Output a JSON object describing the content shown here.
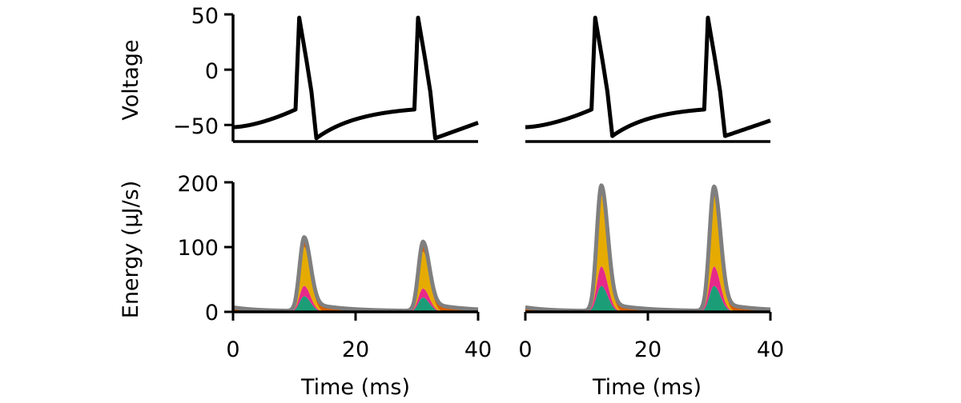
{
  "chart_data": {
    "type": "line+stacked-area",
    "x_axis": {
      "label": "Time (ms)",
      "ticks": [
        0,
        20,
        40
      ],
      "range": [
        0,
        40
      ]
    },
    "voltage_axis": {
      "label": "Voltage",
      "ticks": [
        50,
        0,
        -50
      ],
      "range": [
        -65,
        50
      ]
    },
    "energy_axis": {
      "label": "Energy (µJ/s)",
      "ticks": [
        200,
        100,
        0
      ],
      "range": [
        0,
        200
      ]
    },
    "energy_layer_colors": [
      "#1b9e77",
      "#e7298a",
      "#e6ab02",
      "#d95f02",
      "#7f7f7f"
    ],
    "panels": [
      {
        "name": "left",
        "voltage": {
          "color": "#000000",
          "spike_times_ms": [
            10.2,
            29.6
          ],
          "peak_mv": 47,
          "trough_mv": -62,
          "start_mv": -52,
          "end_mv": -48
        },
        "energy": {
          "peaks": [
            {
              "t": 11.6,
              "total": 105,
              "layers": [
                24,
                16,
                60,
                3
              ]
            },
            {
              "t": 31.0,
              "total": 97,
              "layers": [
                22,
                14,
                57,
                3
              ]
            }
          ]
        }
      },
      {
        "name": "right",
        "voltage": {
          "color": "#000000",
          "spike_times_ms": [
            10.8,
            29.2
          ],
          "peak_mv": 47,
          "trough_mv": -60,
          "start_mv": -52,
          "end_mv": -46
        },
        "energy": {
          "peaks": [
            {
              "t": 12.4,
              "total": 186,
              "layers": [
                40,
                30,
                110,
                3
              ]
            },
            {
              "t": 30.8,
              "total": 184,
              "layers": [
                40,
                30,
                108,
                3
              ]
            }
          ]
        }
      }
    ]
  }
}
